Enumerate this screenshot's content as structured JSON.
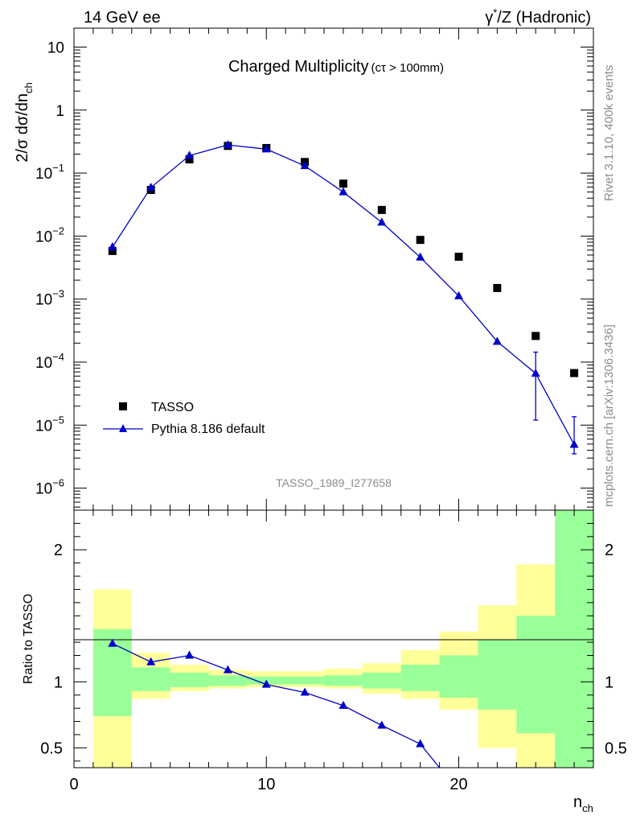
{
  "header": {
    "left": "14 GeV ee",
    "right_prefix": "γ",
    "right_sup": "*",
    "right_suffix": "/Z (Hadronic)"
  },
  "side_labels": {
    "rivet": "Rivet 3.1.10,  400k events",
    "mcplots": "mcplots.cern.ch [arXiv:1306.3436]"
  },
  "chart_data": [
    {
      "panel": "main",
      "type": "scatter",
      "scale": "log",
      "title_main": "Charged Multiplicity",
      "title_cut": "(cτ > 100mm)",
      "ylabel_main": "2/σ dσ/dn",
      "ylabel_sub": "ch",
      "watermark": "TASSO_1989_I277658",
      "xlim": [
        0,
        27
      ],
      "ylim_exp": [
        -6.35,
        1.3
      ],
      "y_tick_labels": [
        {
          "exp": -6,
          "base": "10",
          "sup": "−6"
        },
        {
          "exp": -5,
          "base": "10",
          "sup": "−5"
        },
        {
          "exp": -4,
          "base": "10",
          "sup": "−4"
        },
        {
          "exp": -3,
          "base": "10",
          "sup": "−3"
        },
        {
          "exp": -2,
          "base": "10",
          "sup": "−2"
        },
        {
          "exp": -1,
          "base": "10",
          "sup": "−1"
        },
        {
          "exp": 0,
          "base": "1",
          "sup": ""
        },
        {
          "exp": 1,
          "base": "10",
          "sup": ""
        }
      ],
      "series": [
        {
          "name": "TASSO",
          "marker": "square",
          "color": "#000000",
          "x": [
            2,
            4,
            6,
            8,
            10,
            12,
            14,
            16,
            18,
            20,
            22,
            24,
            26
          ],
          "y": [
            0.0058,
            0.054,
            0.165,
            0.27,
            0.25,
            0.15,
            0.068,
            0.026,
            0.0087,
            0.0047,
            0.0015,
            0.00026,
            6.7e-05
          ]
        },
        {
          "name": "Pythia 8.186 default",
          "marker": "triangle",
          "color": "#0000cc",
          "x": [
            2,
            4,
            6,
            8,
            10,
            12,
            14,
            16,
            18,
            20,
            22,
            24,
            26
          ],
          "y": [
            0.0067,
            0.059,
            0.19,
            0.28,
            0.24,
            0.13,
            0.05,
            0.0165,
            0.0046,
            0.00112,
            0.000212,
            6.6e-05,
            4.9e-06
          ],
          "yerr_lo": [
            0,
            0,
            0,
            0,
            0,
            0,
            0,
            0,
            0,
            0,
            0,
            5.4e-05,
            1.4e-06
          ],
          "yerr_hi": [
            0,
            0,
            0,
            0,
            0,
            0,
            0,
            0,
            0,
            0,
            0,
            7.8e-05,
            8.7e-06
          ]
        }
      ]
    },
    {
      "panel": "ratio",
      "type": "line",
      "ylabel": "Ratio to TASSO",
      "xlabel_main": "n",
      "xlabel_sub": "ch",
      "xlim": [
        0,
        27
      ],
      "ylim": [
        0.35,
        2.3
      ],
      "x_ticks": [
        0,
        10,
        20
      ],
      "y_ticks": [
        0.5,
        1,
        2
      ],
      "bands": {
        "bin_edges": [
          1,
          3,
          5,
          7,
          9,
          11,
          13,
          15,
          17,
          19,
          21,
          23,
          25,
          27
        ],
        "yellow_lo": [
          0.35,
          0.87,
          0.93,
          0.95,
          0.96,
          0.96,
          0.95,
          0.91,
          0.87,
          0.79,
          0.5,
          0.35,
          0.35
        ],
        "yellow_hi": [
          1.7,
          1.22,
          1.13,
          1.09,
          1.08,
          1.08,
          1.1,
          1.14,
          1.24,
          1.38,
          1.58,
          1.89,
          2.3
        ],
        "green_lo": [
          0.74,
          0.93,
          0.96,
          0.97,
          0.98,
          0.98,
          0.97,
          0.95,
          0.93,
          0.88,
          0.79,
          0.61,
          0.35
        ],
        "green_hi": [
          1.4,
          1.11,
          1.07,
          1.05,
          1.04,
          1.04,
          1.05,
          1.07,
          1.13,
          1.2,
          1.32,
          1.5,
          2.3
        ]
      },
      "series": [
        {
          "name": "Pythia 8.186 default / TASSO",
          "color": "#0000cc",
          "x": [
            2,
            4,
            6,
            8,
            10,
            12,
            14,
            16,
            18,
            19
          ],
          "y": [
            1.29,
            1.15,
            1.2,
            1.09,
            0.98,
            0.92,
            0.82,
            0.67,
            0.53,
            0.35
          ],
          "markers": [
            true,
            true,
            true,
            true,
            true,
            true,
            true,
            true,
            true,
            false
          ]
        }
      ]
    }
  ]
}
